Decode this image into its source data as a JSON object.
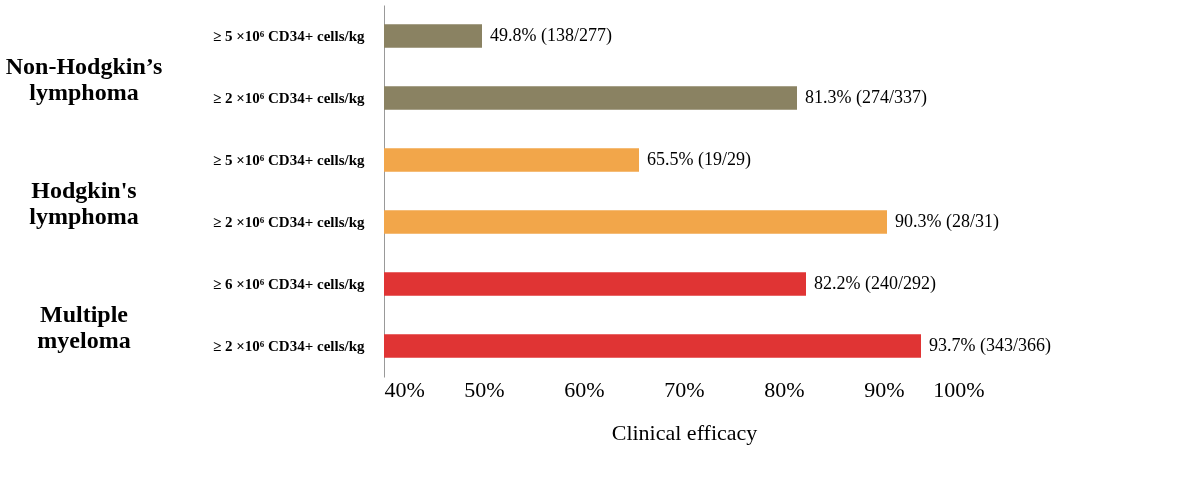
{
  "chart_data": {
    "type": "bar",
    "orientation": "horizontal",
    "xlabel": "Clinical efficacy",
    "categories": [
      "≥ 5 ×10⁶ CD34+ cells/kg",
      "≥ 2 ×10⁶ CD34+ cells/kg",
      "≥ 5 ×10⁶ CD34+ cells/kg",
      "≥ 2 ×10⁶ CD34+ cells/kg",
      "≥ 6 ×10⁶ CD34+ cells/kg",
      "≥ 2 ×10⁶ CD34+ cells/kg"
    ],
    "values": [
      49.8,
      81.3,
      65.5,
      90.3,
      82.2,
      93.7
    ],
    "colors": [
      "#8a8262",
      "#8a8262",
      "#f2a64a",
      "#f2a64a",
      "#e03434",
      "#e03434"
    ],
    "value_labels": [
      "49.8% (138/277)",
      "81.3% (274/337)",
      "65.5% (19/29)",
      "90.3% (28/31)",
      "82.2% (240/292)",
      "93.7% (343/366)"
    ],
    "annotations": [
      "Non-Hodgkin’s lymphoma",
      "Hodgkin's lymphoma",
      "Multiple myeloma"
    ],
    "xlim": [
      40,
      100
    ],
    "xticks": [
      {
        "value": 40,
        "label": "40%"
      },
      {
        "value": 50,
        "label": "50%"
      },
      {
        "value": 60,
        "label": "60%"
      },
      {
        "value": 70,
        "label": "70%"
      },
      {
        "value": 80,
        "label": "80%"
      },
      {
        "value": 90,
        "label": "90%"
      },
      {
        "value": 100,
        "label": "100%"
      }
    ],
    "grid": false
  }
}
